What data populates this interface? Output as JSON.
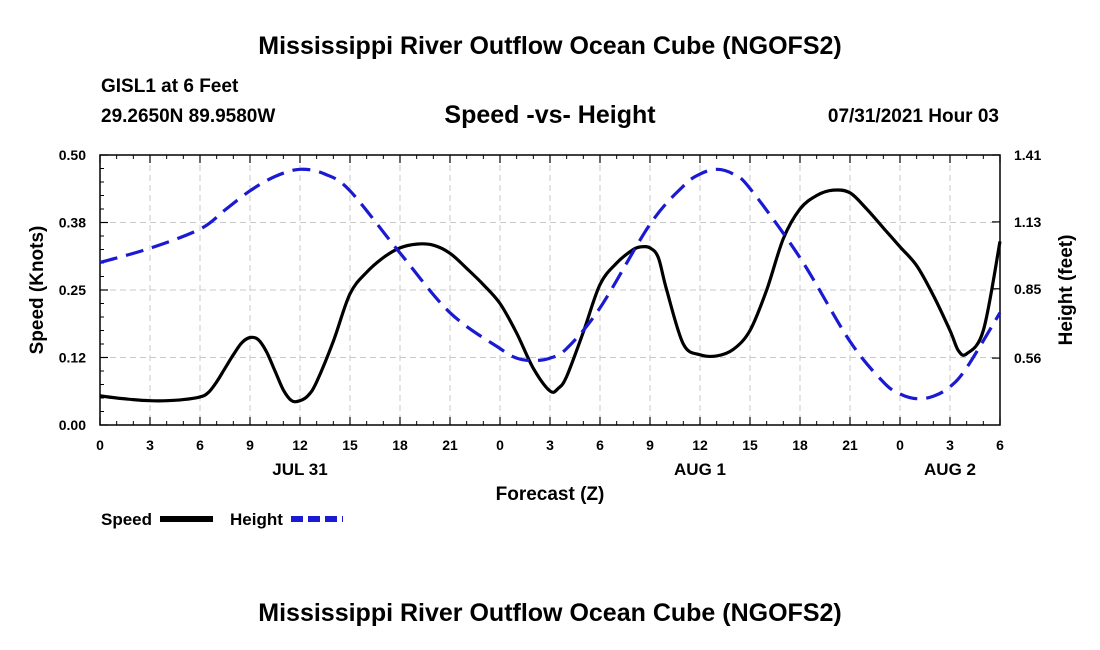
{
  "page": {
    "top_title": "Mississippi River Outflow Ocean Cube (NGOFS2)",
    "bottom_title": "Mississippi River Outflow Ocean Cube (NGOFS2)",
    "station_line": "GISL1 at 6 Feet",
    "coords_line": "29.2650N  89.9580W",
    "datetime": "07/31/2021 Hour 03"
  },
  "colors": {
    "speed": "#000000",
    "height": "#1a1ad2",
    "grid": "#c8c8c8"
  },
  "chart_data": {
    "type": "line",
    "title": "Speed -vs- Height",
    "xlabel": "Forecast (Z)",
    "ylabel": "Speed (Knots)",
    "y2label": "Height (feet)",
    "x_range": [
      0,
      54
    ],
    "ylim": [
      0,
      0.5
    ],
    "y2lim": [
      0.28,
      1.41
    ],
    "grid": true,
    "legend_position": "bottom-left",
    "x_ticks": [
      {
        "x": 0,
        "label": "0"
      },
      {
        "x": 3,
        "label": "3"
      },
      {
        "x": 6,
        "label": "6"
      },
      {
        "x": 9,
        "label": "9"
      },
      {
        "x": 12,
        "label": "12"
      },
      {
        "x": 15,
        "label": "15"
      },
      {
        "x": 18,
        "label": "18"
      },
      {
        "x": 21,
        "label": "21"
      },
      {
        "x": 24,
        "label": "0"
      },
      {
        "x": 27,
        "label": "3"
      },
      {
        "x": 30,
        "label": "6"
      },
      {
        "x": 33,
        "label": "9"
      },
      {
        "x": 36,
        "label": "12"
      },
      {
        "x": 39,
        "label": "15"
      },
      {
        "x": 42,
        "label": "18"
      },
      {
        "x": 45,
        "label": "21"
      },
      {
        "x": 48,
        "label": "0"
      },
      {
        "x": 51,
        "label": "3"
      },
      {
        "x": 54,
        "label": "6"
      }
    ],
    "date_labels": [
      {
        "x": 12,
        "label": "JUL 31"
      },
      {
        "x": 36,
        "label": "AUG 1"
      },
      {
        "x": 51,
        "label": "AUG 2"
      }
    ],
    "y_ticks": [
      {
        "value": 0.0,
        "label": "0.00"
      },
      {
        "value": 0.125,
        "label": "0.12"
      },
      {
        "value": 0.25,
        "label": "0.25"
      },
      {
        "value": 0.375,
        "label": "0.38"
      },
      {
        "value": 0.5,
        "label": "0.50"
      }
    ],
    "y2_ticks": [
      {
        "value": 0.56,
        "label": "0.56"
      },
      {
        "value": 0.85,
        "label": "0.85"
      },
      {
        "value": 1.13,
        "label": "1.13"
      },
      {
        "value": 1.41,
        "label": "1.41"
      }
    ],
    "series": [
      {
        "name": "Speed",
        "axis": "left",
        "style": "solid",
        "x": [
          0,
          1,
          2,
          3,
          4,
          5,
          6,
          6.5,
          7,
          7.5,
          8,
          8.5,
          9,
          9.5,
          10,
          10.5,
          11,
          11.5,
          12,
          12.5,
          13,
          14,
          15,
          16,
          17,
          18,
          19,
          20,
          21,
          22,
          23,
          24,
          25,
          26,
          27,
          27.5,
          28,
          29,
          30,
          31,
          32,
          32.5,
          33,
          33.5,
          34,
          35,
          36,
          37,
          38,
          39,
          40,
          41,
          42,
          43,
          44,
          45,
          46,
          47,
          48,
          49,
          50,
          51,
          51.5,
          52,
          53,
          54
        ],
        "values": [
          0.054,
          0.05,
          0.047,
          0.045,
          0.045,
          0.047,
          0.052,
          0.06,
          0.08,
          0.105,
          0.13,
          0.152,
          0.162,
          0.158,
          0.135,
          0.1,
          0.065,
          0.045,
          0.045,
          0.055,
          0.08,
          0.155,
          0.243,
          0.283,
          0.31,
          0.328,
          0.335,
          0.333,
          0.318,
          0.29,
          0.26,
          0.225,
          0.17,
          0.105,
          0.063,
          0.068,
          0.09,
          0.172,
          0.26,
          0.3,
          0.325,
          0.33,
          0.328,
          0.31,
          0.25,
          0.15,
          0.13,
          0.128,
          0.14,
          0.175,
          0.25,
          0.345,
          0.4,
          0.425,
          0.435,
          0.43,
          0.4,
          0.365,
          0.33,
          0.295,
          0.24,
          0.175,
          0.138,
          0.132,
          0.175,
          0.34
        ]
      },
      {
        "name": "Height",
        "axis": "right",
        "style": "dashed",
        "x": [
          0,
          3,
          6,
          7.5,
          9,
          10.5,
          12,
          13.5,
          15,
          18,
          21,
          24,
          25,
          26,
          27,
          28,
          30,
          33,
          35,
          36,
          37,
          38,
          39,
          42,
          45,
          47,
          48,
          49,
          50,
          51,
          52,
          54
        ],
        "values": [
          0.96,
          1.02,
          1.1,
          1.18,
          1.26,
          1.32,
          1.35,
          1.33,
          1.26,
          1.0,
          0.75,
          0.6,
          0.56,
          0.55,
          0.56,
          0.6,
          0.77,
          1.12,
          1.28,
          1.33,
          1.35,
          1.33,
          1.27,
          0.98,
          0.63,
          0.46,
          0.41,
          0.39,
          0.4,
          0.44,
          0.52,
          0.75
        ]
      }
    ],
    "legend": [
      {
        "label": "Speed",
        "series": "Speed"
      },
      {
        "label": "Height",
        "series": "Height"
      }
    ]
  }
}
